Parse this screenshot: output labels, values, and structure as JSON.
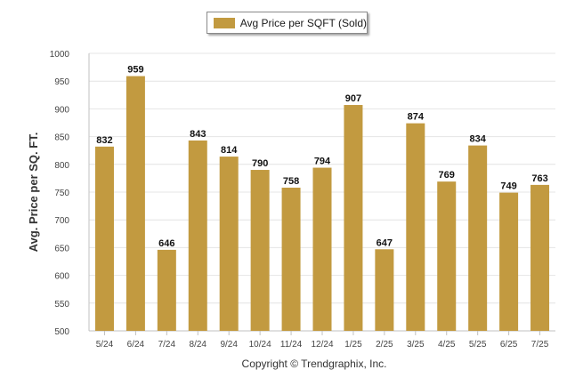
{
  "chart_data": {
    "type": "bar",
    "legend": "Avg Price per SQFT (Sold)",
    "legend_position": "top-center",
    "ylabel": "Avg. Price per SQ. FT.",
    "xlabel": "",
    "categories": [
      "5/24",
      "6/24",
      "7/24",
      "8/24",
      "9/24",
      "10/24",
      "11/24",
      "12/24",
      "1/25",
      "2/25",
      "3/25",
      "4/25",
      "5/25",
      "6/25",
      "7/25"
    ],
    "series": [
      {
        "name": "Avg Price per SQFT (Sold)",
        "values": [
          832,
          959,
          646,
          843,
          814,
          790,
          758,
          794,
          907,
          647,
          874,
          769,
          834,
          749,
          763
        ]
      }
    ],
    "ylim": [
      500,
      1000
    ],
    "yticks": [
      500,
      550,
      600,
      650,
      700,
      750,
      800,
      850,
      900,
      950,
      1000
    ],
    "grid": true,
    "bar_color": "#c29a40"
  },
  "footer": {
    "copyright": "Copyright © Trendgraphix, Inc."
  }
}
